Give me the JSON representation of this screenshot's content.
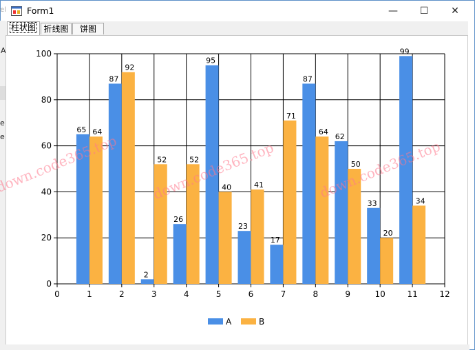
{
  "window": {
    "title": "Form1",
    "minimize_glyph": "—",
    "maximize_glyph": "☐",
    "close_glyph": "✕"
  },
  "background_fragments": [
    "el",
    "A",
    "e",
    "e"
  ],
  "tabs": [
    {
      "label": "柱状图",
      "active": true
    },
    {
      "label": "折线图",
      "active": false
    },
    {
      "label": "饼图",
      "active": false
    }
  ],
  "watermark": "down.code365.top",
  "colors": {
    "A": "#4a8fe6",
    "B": "#fbb242",
    "grid": "#000000",
    "window_border": "#5b8fc7"
  },
  "chart_data": {
    "type": "bar",
    "x": [
      1,
      2,
      3,
      4,
      5,
      6,
      7,
      8,
      9,
      10,
      11
    ],
    "xlim": [
      0,
      12
    ],
    "ylim": [
      0,
      100
    ],
    "xticks": [
      0,
      1,
      2,
      3,
      4,
      5,
      6,
      7,
      8,
      9,
      10,
      11,
      12
    ],
    "yticks": [
      0,
      20,
      40,
      60,
      80,
      100
    ],
    "grid": true,
    "legend_position": "bottom",
    "series": [
      {
        "name": "A",
        "values": [
          65,
          87,
          2,
          26,
          95,
          23,
          17,
          87,
          62,
          33,
          99
        ]
      },
      {
        "name": "B",
        "values": [
          64,
          92,
          52,
          52,
          40,
          41,
          71,
          64,
          50,
          20,
          34
        ]
      }
    ]
  }
}
